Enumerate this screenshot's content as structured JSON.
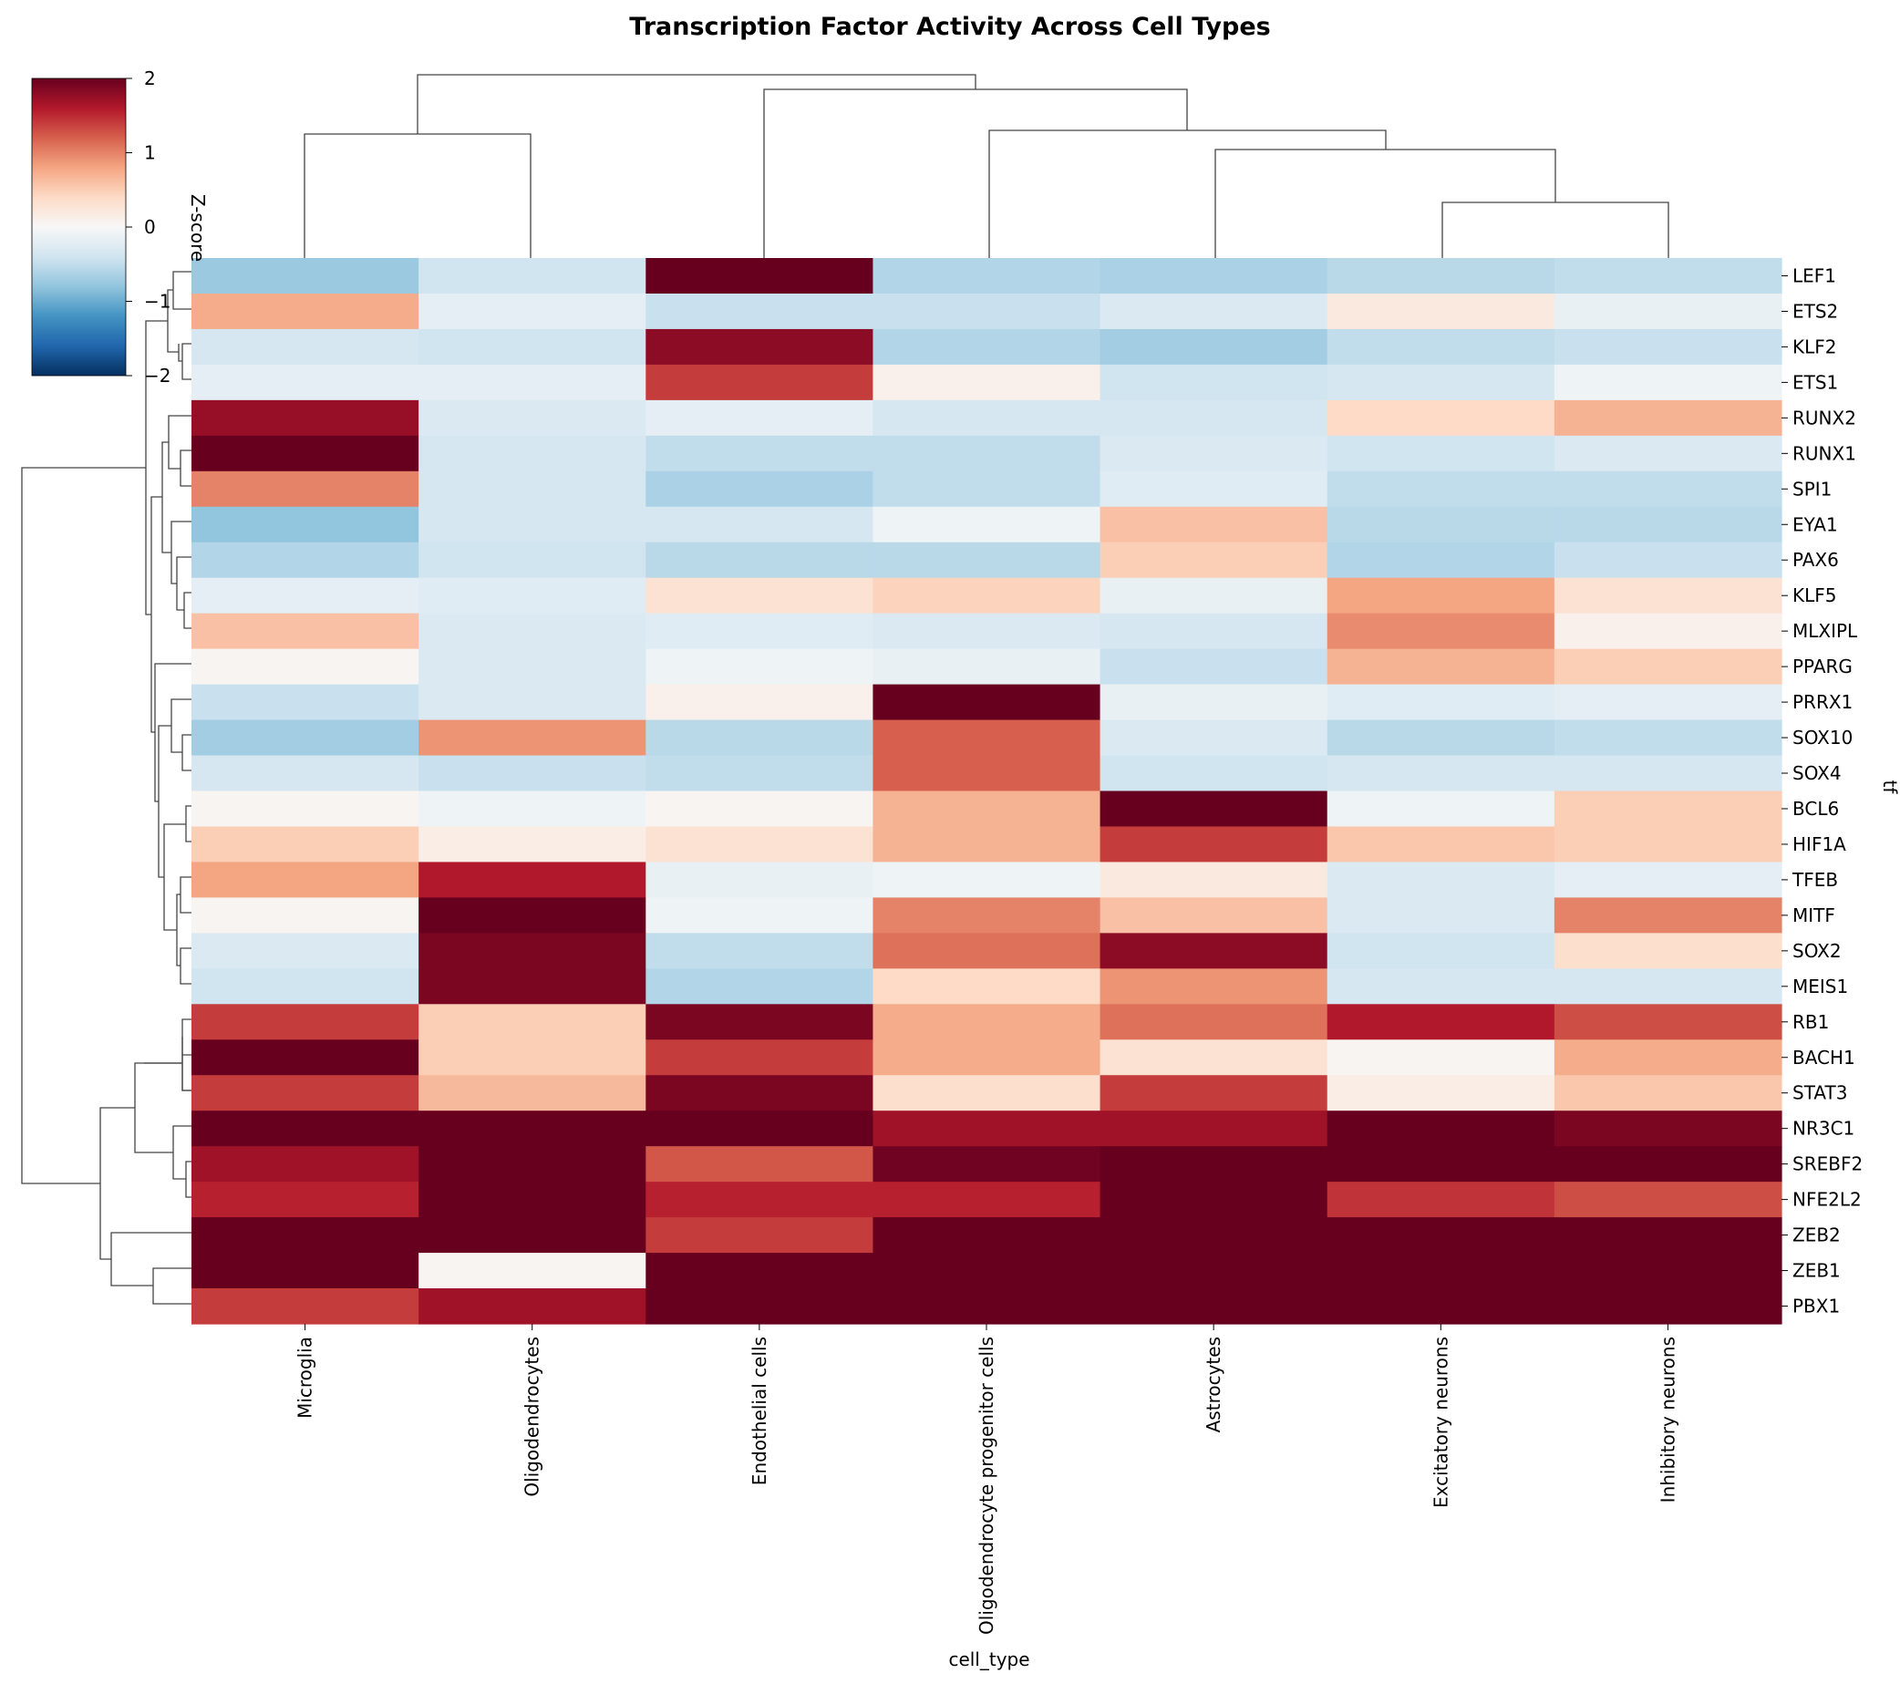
{
  "chart_data": {
    "type": "heatmap",
    "title": "Transcription Factor Activity Across Cell Types",
    "xlabel": "cell_type",
    "ylabel": "tf",
    "colorbar": {
      "label": "Z-score",
      "range": [
        -2,
        2
      ],
      "ticks": [
        "2",
        "1",
        "0",
        "−1",
        "−2"
      ],
      "colormap": "RdBu_r",
      "colors": [
        "#053061",
        "#2166ac",
        "#4393c3",
        "#92c5de",
        "#d1e5f0",
        "#f7f7f7",
        "#fddbc7",
        "#f4a582",
        "#d6604d",
        "#b2182b",
        "#67001f"
      ]
    },
    "columns": [
      "Microglia",
      "Oligodendrocytes",
      "Endothelial cells",
      "Oligodendrocyte progenitor cells",
      "Astrocytes",
      "Excitatory neurons",
      "Inhibitory neurons"
    ],
    "rows": [
      "LEF1",
      "ETS2",
      "KLF2",
      "ETS1",
      "RUNX2",
      "RUNX1",
      "SPI1",
      "EYA1",
      "PAX6",
      "KLF5",
      "MLXIPL",
      "PPARG",
      "PRRX1",
      "SOX10",
      "SOX4",
      "BCL6",
      "HIF1A",
      "TFEB",
      "MITF",
      "SOX2",
      "MEIS1",
      "RB1",
      "BACH1",
      "STAT3",
      "NR3C1",
      "SREBF2",
      "NFE2L2",
      "ZEB2",
      "ZEB1",
      "PBX1"
    ],
    "values": [
      [
        -0.75,
        -0.4,
        2.0,
        -0.6,
        -0.65,
        -0.55,
        -0.5
      ],
      [
        0.75,
        -0.2,
        -0.45,
        -0.45,
        -0.3,
        0.2,
        -0.15
      ],
      [
        -0.35,
        -0.4,
        1.8,
        -0.6,
        -0.7,
        -0.5,
        -0.45
      ],
      [
        -0.2,
        -0.2,
        1.4,
        0.1,
        -0.4,
        -0.35,
        -0.1
      ],
      [
        1.75,
        -0.3,
        -0.2,
        -0.35,
        -0.35,
        0.4,
        0.7
      ],
      [
        2.0,
        -0.35,
        -0.5,
        -0.5,
        -0.3,
        -0.4,
        -0.3
      ],
      [
        1.0,
        -0.35,
        -0.65,
        -0.5,
        -0.25,
        -0.5,
        -0.5
      ],
      [
        -0.8,
        -0.35,
        -0.35,
        -0.1,
        0.6,
        -0.55,
        -0.55
      ],
      [
        -0.6,
        -0.4,
        -0.55,
        -0.55,
        0.5,
        -0.6,
        -0.45
      ],
      [
        -0.2,
        -0.25,
        0.3,
        0.45,
        -0.15,
        0.8,
        0.3
      ],
      [
        0.6,
        -0.3,
        -0.25,
        -0.3,
        -0.35,
        0.95,
        0.1
      ],
      [
        0.05,
        -0.3,
        -0.1,
        -0.15,
        -0.45,
        0.7,
        0.5
      ],
      [
        -0.45,
        -0.3,
        0.1,
        2.0,
        -0.15,
        -0.25,
        -0.2
      ],
      [
        -0.7,
        0.9,
        -0.55,
        1.2,
        -0.3,
        -0.55,
        -0.5
      ],
      [
        -0.35,
        -0.45,
        -0.5,
        1.2,
        -0.4,
        -0.35,
        -0.35
      ],
      [
        0.05,
        -0.1,
        0.05,
        0.7,
        2.0,
        -0.1,
        0.5
      ],
      [
        0.5,
        0.15,
        0.3,
        0.7,
        1.4,
        0.55,
        0.5
      ],
      [
        0.8,
        1.6,
        -0.15,
        -0.1,
        0.2,
        -0.3,
        -0.2
      ],
      [
        0.05,
        2.0,
        -0.1,
        1.0,
        0.6,
        -0.3,
        1.0
      ],
      [
        -0.3,
        1.9,
        -0.5,
        1.1,
        1.8,
        -0.4,
        0.35
      ],
      [
        -0.4,
        1.9,
        -0.6,
        0.4,
        0.9,
        -0.35,
        -0.35
      ],
      [
        1.4,
        0.5,
        1.9,
        0.75,
        1.1,
        1.6,
        1.3
      ],
      [
        2.0,
        0.5,
        1.4,
        0.75,
        0.3,
        0.05,
        0.75
      ],
      [
        1.4,
        0.65,
        1.9,
        0.35,
        1.4,
        0.15,
        0.55
      ],
      [
        2.0,
        2.0,
        2.0,
        1.7,
        1.7,
        2.0,
        1.9
      ],
      [
        1.7,
        2.0,
        1.25,
        1.95,
        2.0,
        2.0,
        2.0
      ],
      [
        1.55,
        2.0,
        1.55,
        1.55,
        2.0,
        1.45,
        1.3
      ],
      [
        2.0,
        2.0,
        1.4,
        2.0,
        2.0,
        2.0,
        2.0
      ],
      [
        2.0,
        0.05,
        2.0,
        2.0,
        2.0,
        2.0,
        2.0
      ],
      [
        1.4,
        1.7,
        2.0,
        2.0,
        2.0,
        2.0,
        2.0
      ]
    ]
  }
}
